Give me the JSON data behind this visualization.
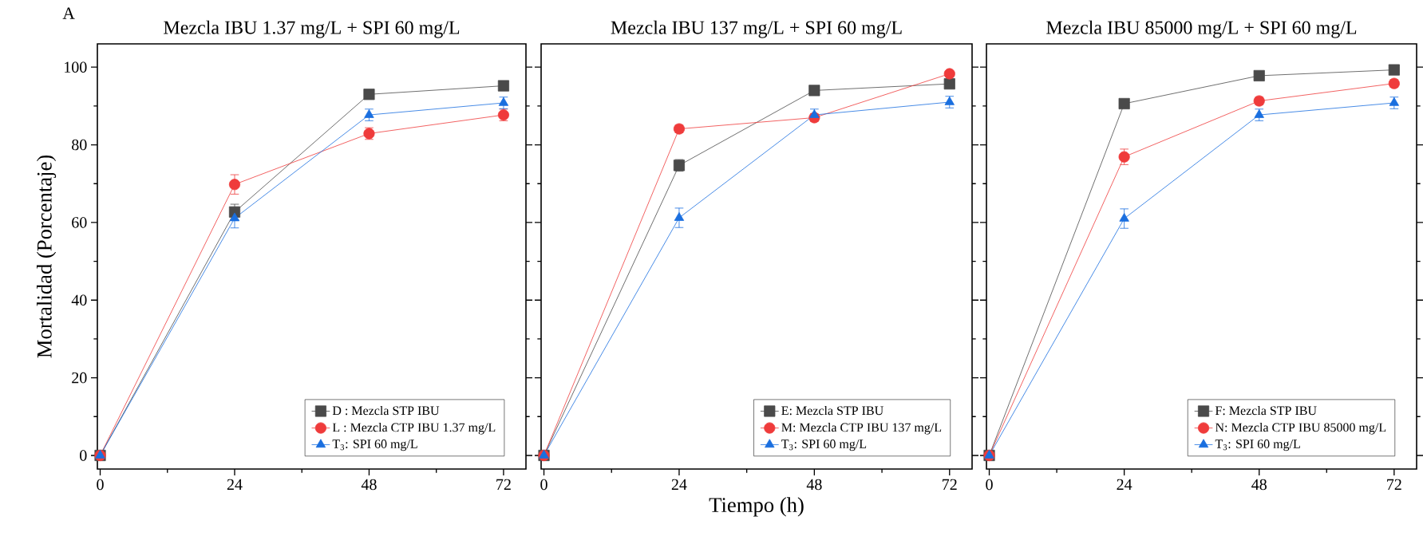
{
  "chart_data": [
    {
      "type": "line",
      "title": "Mezcla IBU 1.37 mg/L + SPI 60 mg/L",
      "ylabel": "Mortalidad (Porcentaje)",
      "annotations": [
        "A"
      ],
      "x": [
        0,
        24,
        48,
        72
      ],
      "xlim": [
        -0.5,
        76
      ],
      "ylim": [
        -3.5,
        106
      ],
      "xticks": [
        0,
        24,
        48,
        72
      ],
      "yticks": [
        0,
        20,
        40,
        60,
        80,
        100
      ],
      "legend": "bottom right",
      "series": [
        {
          "name": "D : Mezcla STP IBU",
          "color": "#4a4a4a",
          "marker": "square",
          "values": [
            0,
            62.7,
            93,
            95.2
          ],
          "errors": [
            null,
            2,
            null,
            null
          ]
        },
        {
          "name": "L : Mezcla CTP IBU 1.37 mg/L",
          "color": "#ef3b3b",
          "marker": "circle",
          "values": [
            0,
            69.8,
            82.9,
            87.7
          ],
          "errors": [
            null,
            2.5,
            1.5,
            1.5
          ]
        },
        {
          "name": "T$_{3}$: SPI 60 mg/L",
          "color": "#1a6fdf",
          "marker": "triangle",
          "values": [
            0,
            61.1,
            87.7,
            90.8
          ],
          "errors": [
            null,
            2.5,
            1.5,
            1.5
          ]
        }
      ]
    },
    {
      "type": "line",
      "title": "Mezcla IBU 137 mg/L + SPI 60 mg/L",
      "xlabel": "Tiempo (h)",
      "x": [
        0,
        24,
        48,
        72
      ],
      "xlim": [
        -0.5,
        76
      ],
      "ylim": [
        -3.5,
        106
      ],
      "xticks": [
        0,
        24,
        48,
        72
      ],
      "yticks": [
        0,
        20,
        40,
        60,
        80,
        100
      ],
      "tick_labels": "x",
      "legend": "bottom right",
      "series": [
        {
          "name": "E: Mezcla STP IBU",
          "color": "#4a4a4a",
          "marker": "square",
          "values": [
            0,
            74.7,
            94,
            95.7
          ],
          "errors": [
            null,
            1.5,
            null,
            null
          ]
        },
        {
          "name": "M: Mezcla CTP IBU 137 mg/L",
          "color": "#ef3b3b",
          "marker": "circle",
          "values": [
            0,
            84.1,
            87,
            98.3
          ],
          "errors": [
            null,
            1,
            1,
            null
          ]
        },
        {
          "name": "T$_{3}$: SPI 60 mg/L",
          "color": "#1a6fdf",
          "marker": "triangle",
          "values": [
            0,
            61.2,
            87.7,
            91
          ],
          "errors": [
            null,
            2.5,
            1.5,
            1.5
          ]
        }
      ]
    },
    {
      "type": "line",
      "title": "Mezcla IBU 85000 mg/L + SPI 60 mg/L",
      "x": [
        0,
        24,
        48,
        72
      ],
      "xlim": [
        -0.5,
        76
      ],
      "ylim": [
        -3.5,
        106
      ],
      "xticks": [
        0,
        24,
        48,
        72
      ],
      "yticks": [
        0,
        20,
        40,
        60,
        80,
        100
      ],
      "tick_labels": "x",
      "legend": "bottom right",
      "series": [
        {
          "name": "F: Mezcla STP IBU",
          "color": "#4a4a4a",
          "marker": "square",
          "values": [
            0,
            90.6,
            97.8,
            99.3
          ],
          "errors": [
            null,
            null,
            null,
            null
          ]
        },
        {
          "name": "N: Mezcla CTP IBU 85000 mg/L",
          "color": "#ef3b3b",
          "marker": "circle",
          "values": [
            0,
            76.9,
            91.3,
            95.8
          ],
          "errors": [
            null,
            2,
            1,
            1
          ]
        },
        {
          "name": "T$_{3}$: SPI 60 mg/L",
          "color": "#1a6fdf",
          "marker": "triangle",
          "values": [
            0,
            61,
            87.7,
            90.8
          ],
          "errors": [
            null,
            2.5,
            1.5,
            1.5
          ]
        }
      ]
    }
  ]
}
